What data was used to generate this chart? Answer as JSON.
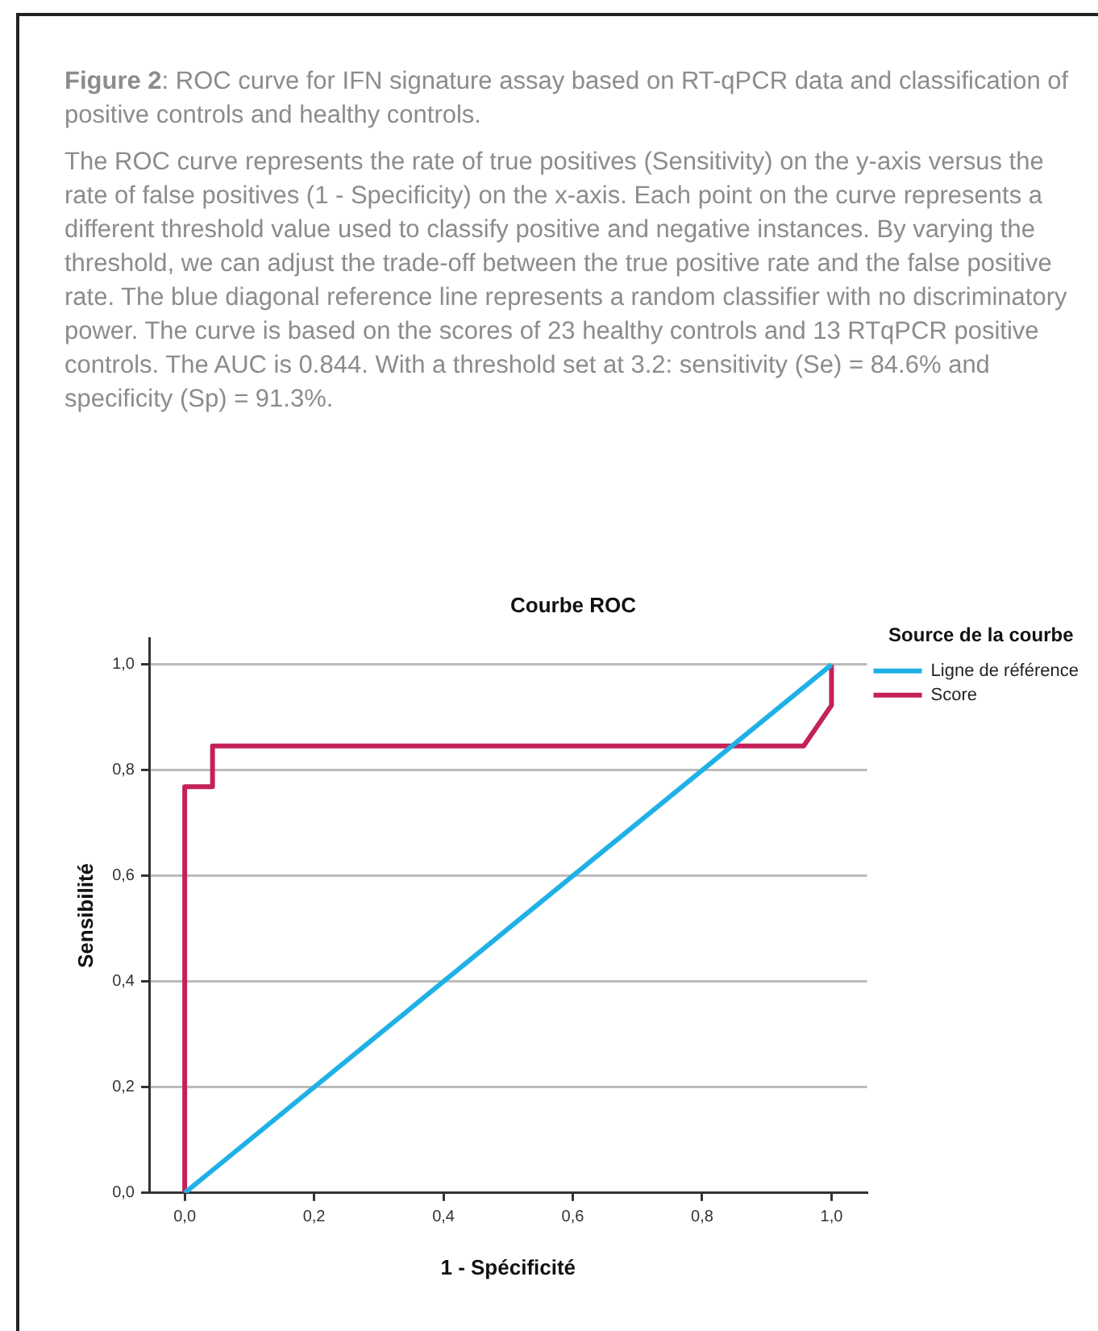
{
  "chart_data": {
    "type": "line",
    "title": "Courbe ROC",
    "xlabel": "1 - Spécificité",
    "ylabel": "Sensibilité",
    "legend_title": "Source de la courbe",
    "annotations": [
      "Figure 2: ROC curve for IFN signature assay based on RT-qPCR data and classification of positive controls and healthy controls.",
      "The ROC curve represents the rate of true positives (Sensitivity) on the y-axis versus the rate of false positives (1 - Specificity) on the x-axis. Each point on the curve represents a different threshold value used to classify positive and negative instances. By varying the threshold, we can adjust the trade-off between the true positive rate and the false positive rate. The blue diagonal reference line represents a random classifier with no discriminatory power. The curve is based on the scores of 23 healthy controls and 13 RTqPCR positive controls. The AUC is 0.844. With a threshold set at 3.2: sensitivity (Se) = 84.6% and specificity (Sp) = 91.3%."
    ],
    "series": [
      {
        "name": "Ligne de référence",
        "color": "#1fb1e6",
        "x": [
          0,
          1
        ],
        "values": [
          0,
          1
        ]
      },
      {
        "name": "Score",
        "color": "#c4215a",
        "x": [
          0,
          0,
          0.043,
          0.043,
          0.957,
          1,
          1
        ],
        "values": [
          0,
          0.769,
          0.769,
          0.846,
          0.846,
          0.923,
          1
        ]
      }
    ],
    "xlim": [
      -0.055,
      1.055
    ],
    "xticks": [
      {
        "value": 0,
        "label": "0,0"
      },
      {
        "value": 0.2,
        "label": "0,2"
      },
      {
        "value": 0.4,
        "label": "0,4"
      },
      {
        "value": 0.6,
        "label": "0,6"
      },
      {
        "value": 0.8,
        "label": "0,8"
      },
      {
        "value": 1,
        "label": "1,0"
      }
    ],
    "ylim": [
      0,
      1.05
    ],
    "yticks": [
      {
        "value": 0,
        "label": "0,0"
      },
      {
        "value": 0.2,
        "label": "0,2"
      },
      {
        "value": 0.4,
        "label": "0,4"
      },
      {
        "value": 0.6,
        "label": "0,6"
      },
      {
        "value": 0.8,
        "label": "0,8"
      },
      {
        "value": 1,
        "label": "1,0"
      }
    ],
    "grid": "y",
    "legend": "top right",
    "marker": "none",
    "line_style": "solid"
  }
}
